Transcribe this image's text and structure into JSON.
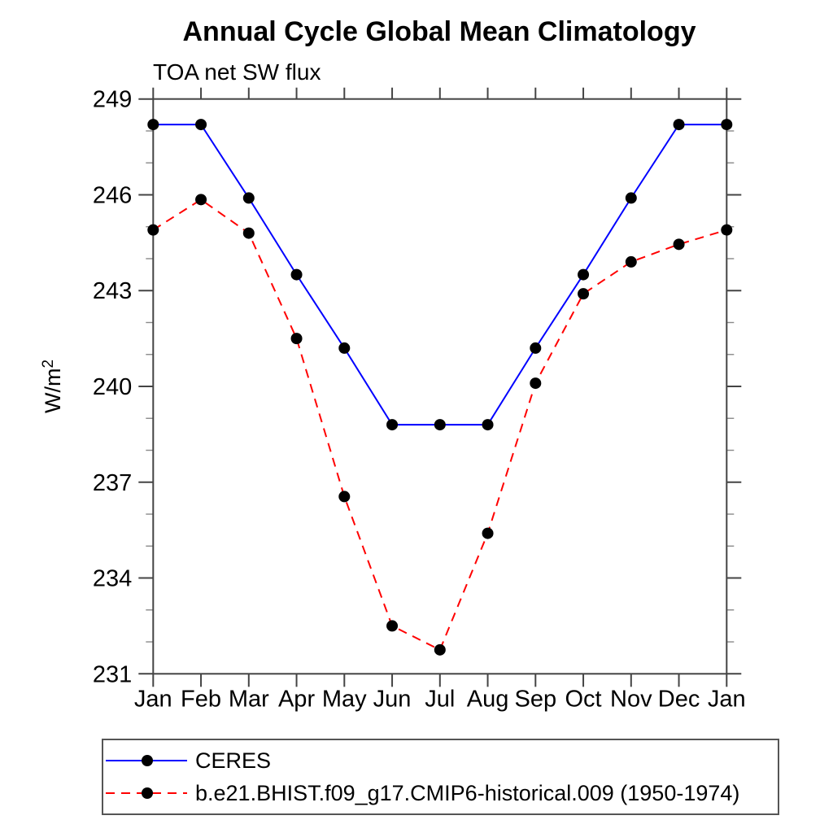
{
  "chart_data": {
    "type": "line",
    "title": "Annual Cycle Global Mean Climatology",
    "subtitle": "TOA net SW flux",
    "xlabel": "",
    "ylabel": "W/m²",
    "categories": [
      "Jan",
      "Feb",
      "Mar",
      "Apr",
      "May",
      "Jun",
      "Jul",
      "Aug",
      "Sep",
      "Oct",
      "Nov",
      "Dec",
      "Jan"
    ],
    "ylim": [
      231,
      249
    ],
    "ytick_major_step": 3,
    "ytick_minor_step": 1,
    "ytick_labels": [
      "231",
      "234",
      "237",
      "240",
      "243",
      "246",
      "249"
    ],
    "grid": false,
    "legend_position": "bottom-left-box",
    "frame_color": "#444444",
    "minor_tick_color": "#8a8a8a",
    "series": [
      {
        "name": "CERES",
        "color": "#0000ff",
        "line_style": "solid",
        "marker": "filled-circle",
        "marker_color": "#000000",
        "values": [
          248.2,
          248.2,
          245.9,
          243.5,
          241.2,
          238.8,
          238.8,
          238.8,
          241.2,
          243.5,
          245.9,
          248.2,
          248.2
        ]
      },
      {
        "name": "b.e21.BHIST.f09_g17.CMIP6-historical.009 (1950-1974)",
        "color": "#ff0000",
        "line_style": "dashed",
        "marker": "filled-circle",
        "marker_color": "#000000",
        "values": [
          244.9,
          245.85,
          244.8,
          241.5,
          236.55,
          232.5,
          231.75,
          235.4,
          240.1,
          242.9,
          243.9,
          244.45,
          244.9
        ]
      }
    ]
  }
}
